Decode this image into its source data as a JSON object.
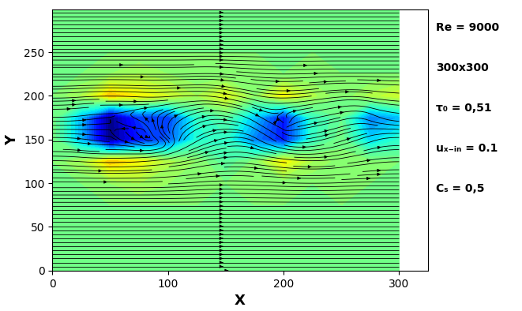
{
  "chart_data": {
    "type": "streamlines",
    "xlabel": "X",
    "ylabel": "Y",
    "xlim": [
      0,
      325
    ],
    "ylim": [
      0,
      299
    ],
    "xticks": [
      0,
      100,
      200,
      300
    ],
    "yticks": [
      0,
      50,
      100,
      150,
      200,
      250
    ],
    "annotations": [
      "Re = 9000",
      "300x300",
      "τ₀ = 0,51",
      "uₓ₋ᵢₙ = 0.1",
      "Cₛ = 0,5"
    ],
    "speed_range": [
      0.0,
      0.2
    ],
    "x": [
      0,
      25,
      50,
      75,
      100,
      125,
      150,
      175,
      200,
      225,
      250,
      275,
      300
    ],
    "y": [
      0,
      25,
      50,
      75,
      100,
      125,
      150,
      175,
      200,
      225,
      250,
      275,
      300
    ],
    "u": [
      [
        0.1,
        0.1,
        0.1,
        0.1,
        0.1,
        0.1,
        0.1,
        0.1,
        0.1,
        0.1,
        0.1,
        0.1,
        0.1
      ],
      [
        0.1,
        0.1,
        0.1,
        0.1,
        0.1,
        0.1,
        0.1,
        0.1,
        0.1,
        0.1,
        0.1,
        0.1,
        0.1
      ],
      [
        0.1,
        0.1,
        0.1,
        0.1,
        0.1,
        0.1,
        0.1,
        0.1,
        0.1,
        0.1,
        0.1,
        0.1,
        0.1
      ],
      [
        0.1,
        0.1,
        0.1,
        0.1,
        0.1,
        0.1,
        0.1,
        0.1,
        0.1,
        0.1,
        0.1,
        0.1,
        0.1
      ],
      [
        0.1,
        0.1,
        0.105,
        0.11,
        0.105,
        0.1,
        0.1,
        0.1,
        0.1,
        0.1,
        0.1,
        0.1,
        0.1
      ],
      [
        0.1,
        0.11,
        0.14,
        0.13,
        0.11,
        0.1,
        0.09,
        0.1,
        0.13,
        0.11,
        0.1,
        0.1,
        0.1
      ],
      [
        0.1,
        0.06,
        0.0,
        0.02,
        -0.03,
        0.06,
        0.08,
        0.04,
        0.02,
        0.08,
        0.09,
        0.06,
        0.08
      ],
      [
        0.1,
        0.06,
        0.0,
        -0.03,
        0.02,
        0.07,
        0.09,
        0.05,
        -0.02,
        0.08,
        0.09,
        0.04,
        0.06
      ],
      [
        0.1,
        0.11,
        0.14,
        0.13,
        0.12,
        0.11,
        0.12,
        0.1,
        0.13,
        0.11,
        0.1,
        0.11,
        0.12
      ],
      [
        0.1,
        0.1,
        0.105,
        0.11,
        0.105,
        0.1,
        0.1,
        0.1,
        0.1,
        0.1,
        0.1,
        0.1,
        0.1
      ],
      [
        0.1,
        0.1,
        0.1,
        0.1,
        0.1,
        0.1,
        0.1,
        0.1,
        0.1,
        0.1,
        0.1,
        0.1,
        0.1
      ],
      [
        0.1,
        0.1,
        0.1,
        0.1,
        0.1,
        0.1,
        0.1,
        0.1,
        0.1,
        0.1,
        0.1,
        0.1,
        0.1
      ],
      [
        0.1,
        0.1,
        0.1,
        0.1,
        0.1,
        0.1,
        0.1,
        0.1,
        0.1,
        0.1,
        0.1,
        0.1,
        0.1
      ]
    ],
    "v": [
      [
        0,
        0,
        0,
        0,
        0,
        0,
        0,
        0,
        0,
        0,
        0,
        0,
        0
      ],
      [
        0,
        0,
        0,
        0,
        0,
        0,
        0,
        0,
        0,
        0,
        0,
        0,
        0
      ],
      [
        0,
        0,
        0,
        0,
        0,
        0,
        0,
        0,
        0,
        0,
        0,
        0,
        0
      ],
      [
        0,
        0,
        0,
        0,
        0,
        0,
        0,
        0,
        0,
        0,
        0,
        0,
        0
      ],
      [
        0,
        0,
        0,
        0,
        0.005,
        0.01,
        0,
        -0.005,
        -0.005,
        0,
        0.005,
        0,
        0
      ],
      [
        0,
        -0.01,
        0,
        0.01,
        0.02,
        0.03,
        0.01,
        -0.02,
        -0.02,
        0,
        0.02,
        0.02,
        0
      ],
      [
        0,
        -0.01,
        0,
        -0.02,
        0.03,
        0.05,
        0.02,
        -0.03,
        -0.02,
        0.02,
        0.04,
        0.03,
        0
      ],
      [
        0,
        0.01,
        0,
        0.02,
        0.03,
        0.04,
        -0.02,
        -0.04,
        0.02,
        0.02,
        0.03,
        -0.03,
        -0.01
      ],
      [
        0,
        0.01,
        0,
        -0.01,
        0.01,
        0,
        -0.03,
        -0.03,
        0,
        0.02,
        0.01,
        -0.02,
        -0.01
      ],
      [
        0,
        0,
        0,
        0,
        0,
        0.005,
        -0.01,
        -0.01,
        0,
        0.005,
        0,
        0,
        0
      ],
      [
        0,
        0,
        0,
        0,
        0,
        0,
        0,
        0,
        0,
        0,
        0,
        0,
        0
      ],
      [
        0,
        0,
        0,
        0,
        0,
        0,
        0,
        0,
        0,
        0,
        0,
        0,
        0
      ],
      [
        0,
        0,
        0,
        0,
        0,
        0,
        0,
        0,
        0,
        0,
        0,
        0,
        0
      ]
    ]
  }
}
